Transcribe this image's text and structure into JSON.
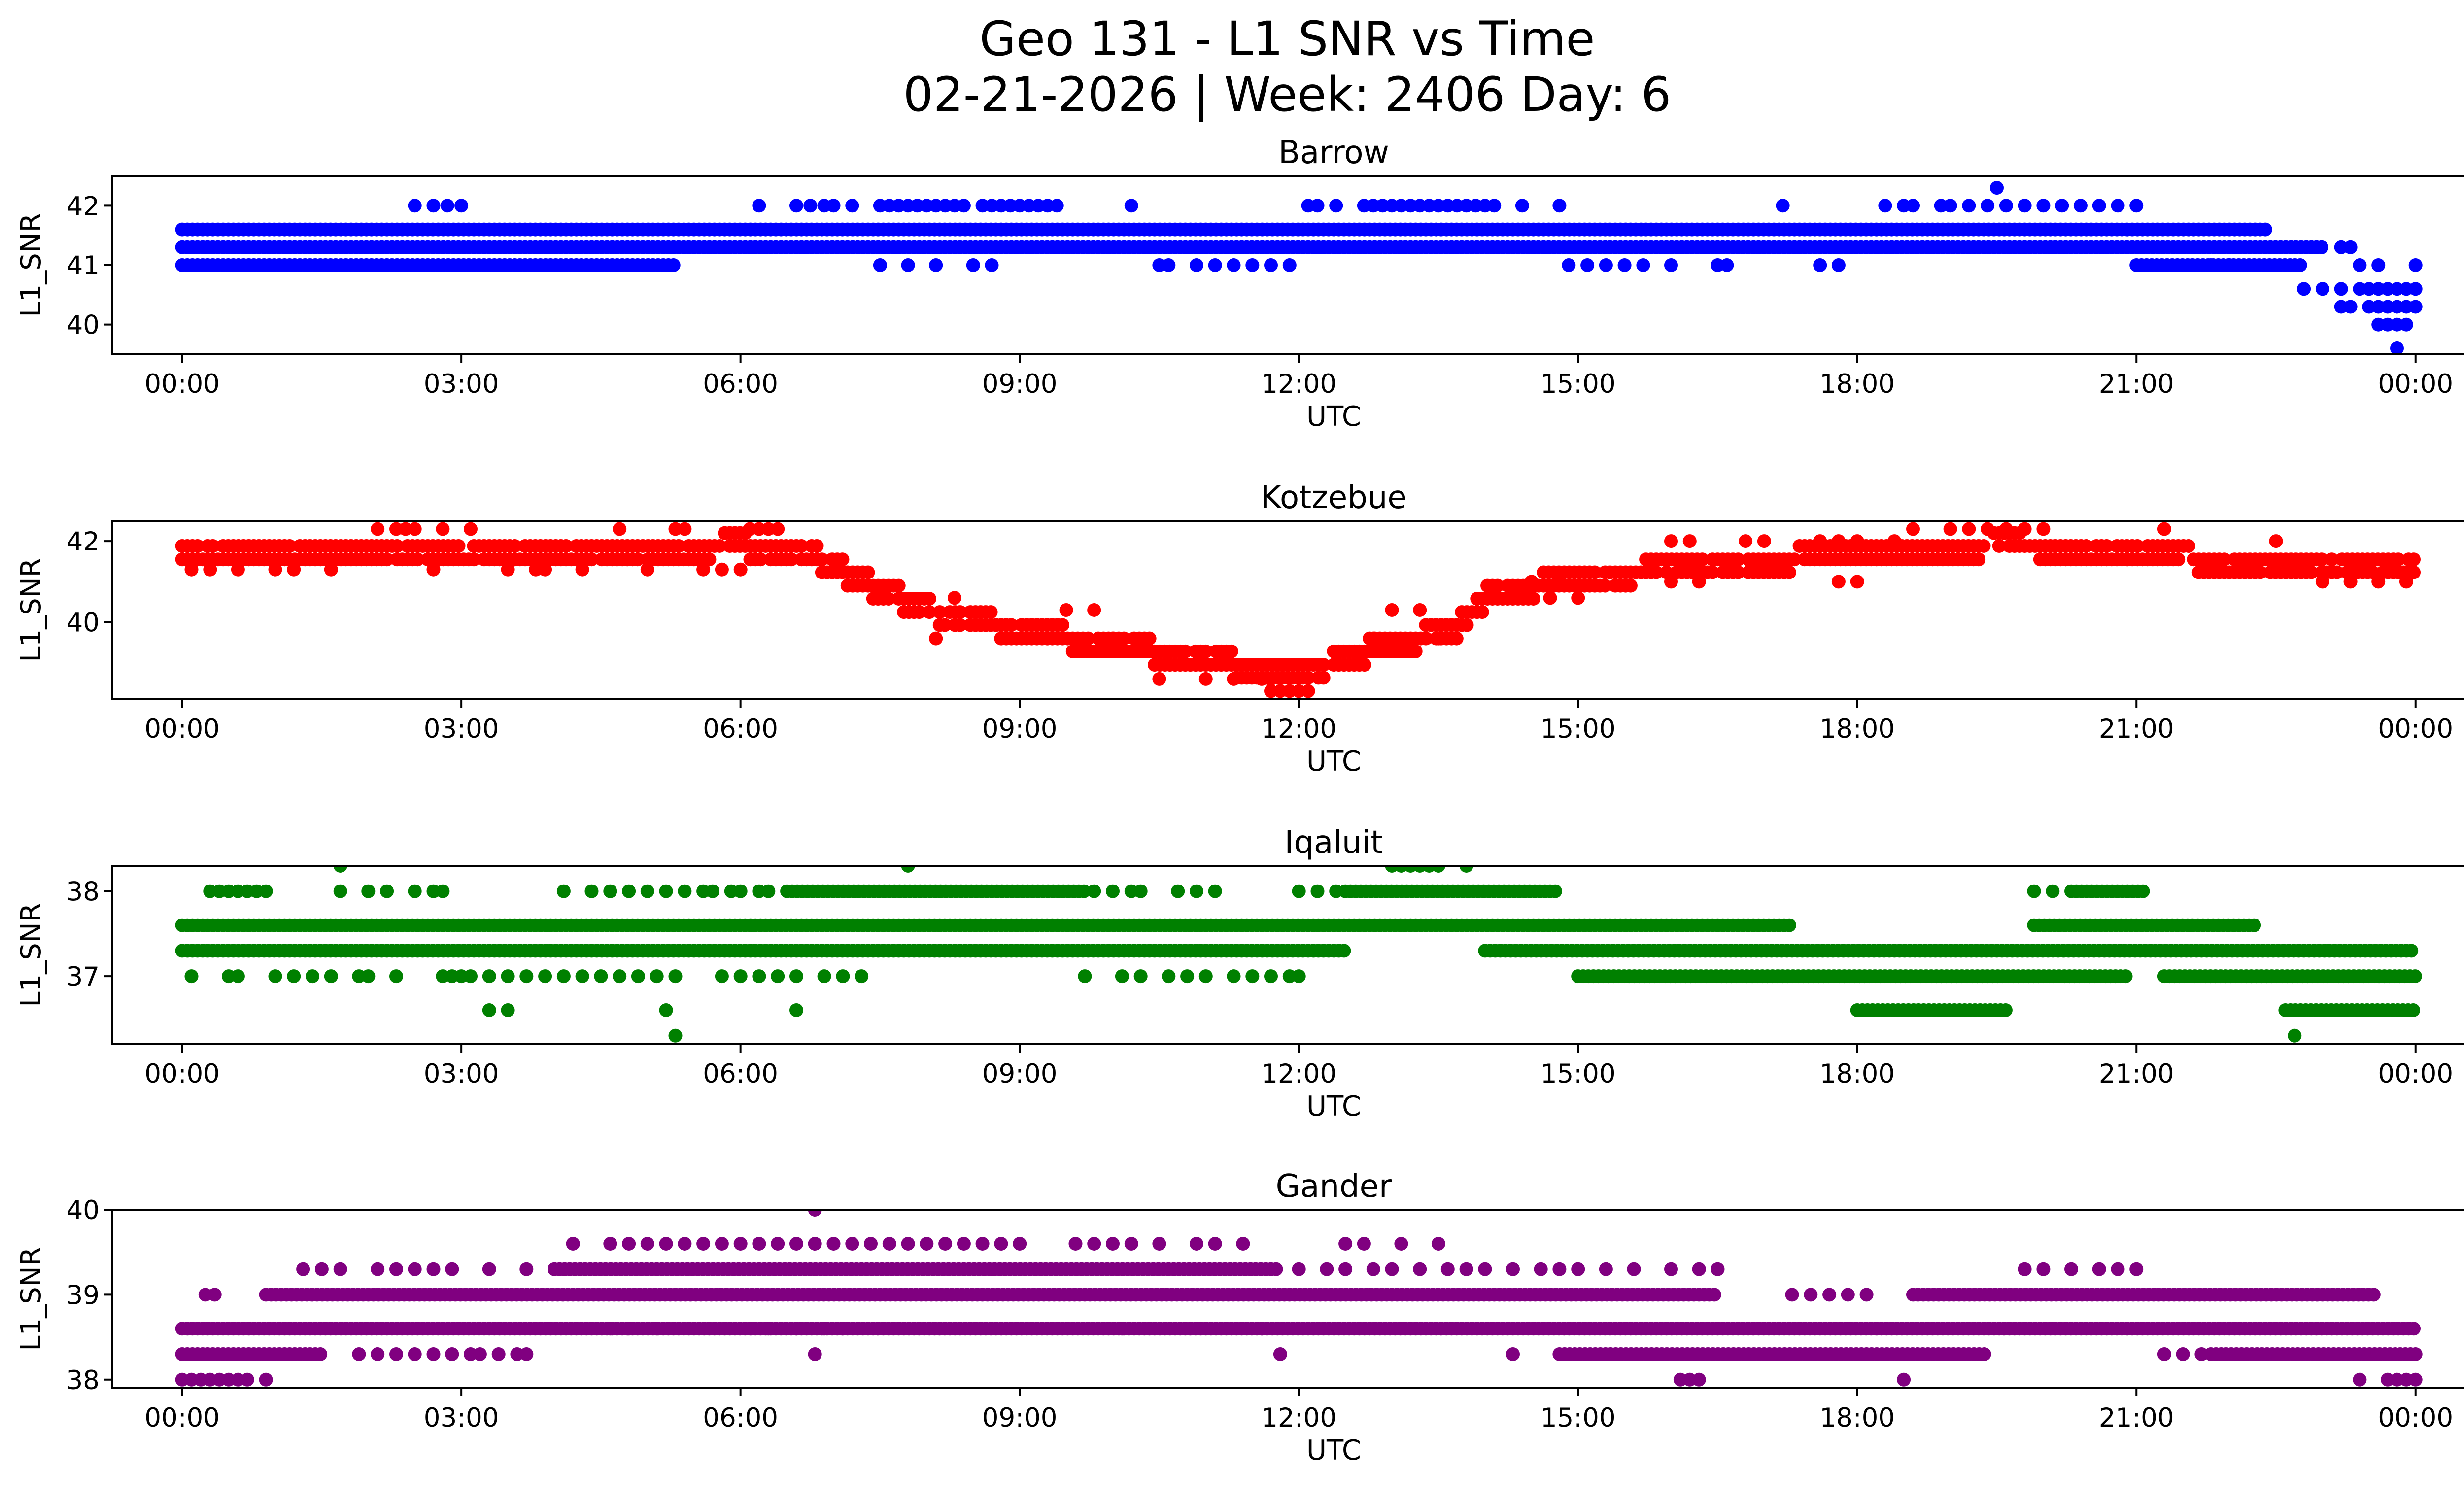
{
  "chart_data": {
    "type": "scatter",
    "title_line1": "Geo 131 - L1 SNR vs Time",
    "title_line2": "02-21-2026 | Week: 2406 Day: 6",
    "xlabel": "UTC",
    "ylabel": "L1_SNR",
    "xlim_hours": [
      -0.75,
      25.5
    ],
    "x_ticks": [
      {
        "hour": 0,
        "label": "00:00"
      },
      {
        "hour": 3,
        "label": "03:00"
      },
      {
        "hour": 6,
        "label": "06:00"
      },
      {
        "hour": 9,
        "label": "09:00"
      },
      {
        "hour": 12,
        "label": "12:00"
      },
      {
        "hour": 15,
        "label": "15:00"
      },
      {
        "hour": 18,
        "label": "18:00"
      },
      {
        "hour": 21,
        "label": "21:00"
      },
      {
        "hour": 24,
        "label": "00:00"
      }
    ],
    "panels": [
      {
        "station": "Barrow",
        "color": "#0000ff",
        "ylim": [
          39.5,
          42.5
        ],
        "y_ticks": [
          {
            "value": 40,
            "label": "40"
          },
          {
            "value": 41,
            "label": "41"
          },
          {
            "value": 42,
            "label": "42"
          }
        ],
        "bands": [
          {
            "value": 41.6,
            "from": 0.0,
            "to": 22.4
          },
          {
            "value": 41.3,
            "from": 0.0,
            "to": 23.0
          },
          {
            "value": 41.0,
            "from": 0.0,
            "to": 5.3
          },
          {
            "value": 41.0,
            "from": 21.0,
            "to": 22.8
          }
        ],
        "scatter": [
          {
            "value": 42.0,
            "x": [
              2.5,
              2.7,
              2.85,
              3.0,
              6.2,
              6.6,
              6.75,
              6.9,
              7.0,
              7.2,
              7.5,
              7.6,
              7.7,
              7.8,
              7.9,
              8.0,
              8.1,
              8.2,
              8.3,
              8.4,
              8.6,
              8.7,
              8.8,
              8.9,
              9.0,
              9.1,
              9.2,
              9.3,
              9.4,
              10.2,
              12.1,
              12.2,
              12.4,
              12.7,
              12.8,
              12.9,
              13.0,
              13.1,
              13.2,
              13.3,
              13.4,
              13.5,
              13.6,
              13.7,
              13.8,
              13.9,
              14.0,
              14.1,
              14.4,
              14.8,
              17.2,
              18.3,
              18.5,
              18.6,
              18.9,
              19.0,
              19.2,
              19.4,
              19.6,
              19.8,
              20.0,
              20.2,
              20.4,
              20.6,
              20.8,
              21.0
            ]
          },
          {
            "value": 42.3,
            "x": [
              19.5
            ]
          },
          {
            "value": 41.0,
            "x": [
              7.5,
              7.8,
              8.1,
              8.5,
              8.7,
              10.5,
              10.6,
              10.9,
              11.1,
              11.3,
              11.5,
              11.7,
              11.9,
              14.9,
              15.1,
              15.3,
              15.5,
              15.7,
              16.0,
              16.5,
              16.6,
              17.6,
              17.8,
              21.8,
              22.0
            ]
          },
          {
            "value": 41.3,
            "x": [
              23.2,
              23.3
            ]
          },
          {
            "value": 40.6,
            "x": [
              22.8,
              23.0,
              23.2,
              23.4,
              23.5,
              23.6,
              23.7,
              23.8,
              23.9,
              24.0
            ]
          },
          {
            "value": 40.3,
            "x": [
              23.2,
              23.3,
              23.5,
              23.6,
              23.7,
              23.8,
              23.9,
              24.0
            ]
          },
          {
            "value": 40.0,
            "x": [
              23.6,
              23.7,
              23.8,
              23.9
            ]
          },
          {
            "value": 41.0,
            "x": [
              23.4,
              23.6,
              24.0
            ]
          },
          {
            "value": 39.6,
            "x": [
              23.8
            ]
          }
        ]
      },
      {
        "station": "Kotzebue",
        "color": "#ff0000",
        "ylim": [
          38.1,
          42.5
        ],
        "y_ticks": [
          {
            "value": 40,
            "label": "40"
          },
          {
            "value": 42,
            "label": "42"
          }
        ],
        "profile": [
          [
            0.0,
            41.7
          ],
          [
            2.0,
            41.8
          ],
          [
            4.0,
            41.7
          ],
          [
            6.0,
            41.9
          ],
          [
            6.8,
            41.6
          ],
          [
            7.3,
            41.0
          ],
          [
            8.0,
            40.3
          ],
          [
            9.0,
            39.8
          ],
          [
            10.0,
            39.4
          ],
          [
            11.0,
            39.1
          ],
          [
            11.8,
            38.7
          ],
          [
            12.4,
            39.0
          ],
          [
            13.0,
            39.5
          ],
          [
            13.6,
            39.7
          ],
          [
            14.0,
            40.6
          ],
          [
            15.0,
            41.1
          ],
          [
            17.0,
            41.5
          ],
          [
            19.5,
            41.9
          ],
          [
            21.0,
            41.8
          ],
          [
            22.0,
            41.4
          ],
          [
            24.0,
            41.3
          ]
        ],
        "scatter": [
          {
            "value": 42.3,
            "x": [
              2.1,
              2.3,
              2.4,
              2.5,
              2.8,
              3.1,
              4.7,
              5.3,
              5.4,
              6.1,
              6.2,
              6.3,
              6.4,
              18.6,
              19.0,
              19.2,
              19.4,
              19.6,
              19.8,
              20.0,
              21.3
            ]
          },
          {
            "value": 41.3,
            "x": [
              0.1,
              0.3,
              0.6,
              1.0,
              1.2,
              1.6,
              2.7,
              3.5,
              3.8,
              3.9,
              4.3,
              5.0,
              5.6,
              5.8,
              6.0
            ]
          },
          {
            "value": 42.0,
            "x": [
              16.0,
              16.2,
              16.8,
              17.0,
              17.6,
              17.8,
              18.0,
              18.4,
              22.5
            ]
          },
          {
            "value": 41.0,
            "x": [
              14.5,
              14.8,
              16.0,
              16.3,
              17.8,
              18.0,
              23.0,
              23.3,
              23.6,
              23.9
            ]
          },
          {
            "value": 40.6,
            "x": [
              8.3,
              14.3,
              14.7,
              15.0
            ]
          },
          {
            "value": 39.6,
            "x": [
              8.1,
              9.3,
              10.0,
              12.8,
              13.5
            ]
          },
          {
            "value": 38.6,
            "x": [
              10.5,
              11.0,
              11.3,
              11.6,
              11.7
            ]
          },
          {
            "value": 38.3,
            "x": [
              11.7,
              11.8,
              11.9,
              12.0,
              12.1
            ]
          },
          {
            "value": 40.3,
            "x": [
              9.5,
              9.8,
              13.0,
              13.3
            ]
          }
        ]
      },
      {
        "station": "Iqaluit",
        "color": "#008000",
        "ylim": [
          36.2,
          38.3
        ],
        "y_ticks": [
          {
            "value": 37,
            "label": "37"
          },
          {
            "value": 38,
            "label": "38"
          }
        ],
        "bands": [
          {
            "value": 37.6,
            "from": 0.0,
            "to": 17.3
          },
          {
            "value": 37.6,
            "from": 19.9,
            "to": 22.3
          },
          {
            "value": 37.3,
            "from": 0.0,
            "to": 12.5
          },
          {
            "value": 37.3,
            "from": 14.0,
            "to": 24.0
          },
          {
            "value": 38.0,
            "from": 6.5,
            "to": 9.7
          },
          {
            "value": 38.0,
            "from": 12.5,
            "to": 14.8
          },
          {
            "value": 38.0,
            "from": 20.3,
            "to": 21.1
          },
          {
            "value": 37.0,
            "from": 15.0,
            "to": 20.9
          },
          {
            "value": 37.0,
            "from": 21.3,
            "to": 24.0
          },
          {
            "value": 36.6,
            "from": 18.0,
            "to": 19.6
          },
          {
            "value": 36.6,
            "from": 22.6,
            "to": 24.0
          }
        ],
        "scatter": [
          {
            "value": 38.0,
            "x": [
              0.3,
              0.4,
              0.5,
              0.6,
              0.7,
              0.8,
              0.9,
              1.7,
              2.0,
              2.2,
              2.5,
              2.7,
              2.8,
              4.1,
              4.4,
              4.6,
              4.8,
              5.0,
              5.2,
              5.4,
              5.6,
              5.7,
              5.9,
              6.0,
              6.2,
              6.3,
              9.8,
              10.0,
              10.2,
              10.3,
              10.7,
              10.9,
              11.1,
              12.0,
              12.2,
              12.4,
              19.9,
              20.1
            ]
          },
          {
            "value": 38.3,
            "x": [
              1.7,
              7.8,
              13.0,
              13.1,
              13.2,
              13.3,
              13.4,
              13.5,
              13.8
            ]
          },
          {
            "value": 37.0,
            "x": [
              0.1,
              0.5,
              0.6,
              1.0,
              1.2,
              1.4,
              1.6,
              1.9,
              2.0,
              2.3,
              2.8,
              2.9,
              3.0,
              3.1,
              3.3,
              3.5,
              3.7,
              3.9,
              4.1,
              4.3,
              4.5,
              4.7,
              4.9,
              5.1,
              5.3,
              5.8,
              6.0,
              6.2,
              6.4,
              6.6,
              6.9,
              7.1,
              7.3,
              9.7,
              10.1,
              10.3,
              10.6,
              10.8,
              11.0,
              11.3,
              11.5,
              11.7,
              11.9,
              12.0
            ]
          },
          {
            "value": 36.6,
            "x": [
              3.3,
              3.5,
              5.2,
              6.6
            ]
          },
          {
            "value": 36.3,
            "x": [
              5.3,
              22.7
            ]
          }
        ]
      },
      {
        "station": "Gander",
        "color": "#800080",
        "ylim": [
          37.9,
          40.0
        ],
        "y_ticks": [
          {
            "value": 38,
            "label": "38"
          },
          {
            "value": 39,
            "label": "39"
          },
          {
            "value": 40,
            "label": "40"
          }
        ],
        "bands": [
          {
            "value": 38.6,
            "from": 0.0,
            "to": 24.0
          },
          {
            "value": 39.0,
            "from": 0.9,
            "to": 16.5
          },
          {
            "value": 39.0,
            "from": 18.6,
            "to": 23.6
          },
          {
            "value": 39.3,
            "from": 4.0,
            "to": 11.8
          },
          {
            "value": 38.3,
            "from": 14.8,
            "to": 19.4
          },
          {
            "value": 38.3,
            "from": 21.8,
            "to": 24.0
          },
          {
            "value": 38.3,
            "from": 0.0,
            "to": 1.5
          }
        ],
        "scatter": [
          {
            "value": 39.6,
            "x": [
              4.2,
              4.6,
              4.8,
              5.0,
              5.2,
              5.4,
              5.6,
              5.8,
              6.0,
              6.2,
              6.4,
              6.6,
              6.8,
              7.0,
              7.2,
              7.4,
              7.6,
              7.8,
              8.0,
              8.2,
              8.4,
              8.6,
              8.8,
              9.0,
              9.6,
              9.8,
              10.0,
              10.2,
              10.5,
              10.9,
              11.1,
              11.4,
              12.5,
              12.7,
              13.1,
              13.5
            ]
          },
          {
            "value": 40.0,
            "x": [
              6.8
            ]
          },
          {
            "value": 39.3,
            "x": [
              1.3,
              1.5,
              1.7,
              2.1,
              2.3,
              2.5,
              2.7,
              2.9,
              3.3,
              3.7,
              12.0,
              12.3,
              12.5,
              12.8,
              13.0,
              13.3,
              13.6,
              13.8,
              14.0,
              14.3,
              14.6,
              14.8,
              15.0,
              15.3,
              15.6,
              16.0,
              16.3,
              16.5,
              19.8,
              20.0,
              20.3,
              20.6,
              20.8,
              21.0
            ]
          },
          {
            "value": 39.0,
            "x": [
              0.25,
              0.35,
              17.3,
              17.5,
              17.7,
              17.9,
              18.1
            ]
          },
          {
            "value": 38.3,
            "x": [
              1.9,
              2.1,
              2.3,
              2.5,
              2.7,
              2.9,
              3.1,
              3.2,
              3.4,
              3.6,
              3.7,
              6.8,
              11.8,
              14.3,
              21.3,
              21.5,
              21.7
            ]
          },
          {
            "value": 38.0,
            "x": [
              0.0,
              0.1,
              0.2,
              0.3,
              0.4,
              0.5,
              0.6,
              0.7,
              0.9,
              16.1,
              16.2,
              16.3,
              18.5,
              23.4,
              23.7,
              23.8,
              23.9,
              24.0
            ]
          },
          {
            "value": 38.6,
            "x": [
              4.6,
              4.8,
              5.1,
              6.3,
              6.6,
              6.9,
              7.1,
              10.1,
              11.6
            ]
          }
        ]
      }
    ]
  }
}
